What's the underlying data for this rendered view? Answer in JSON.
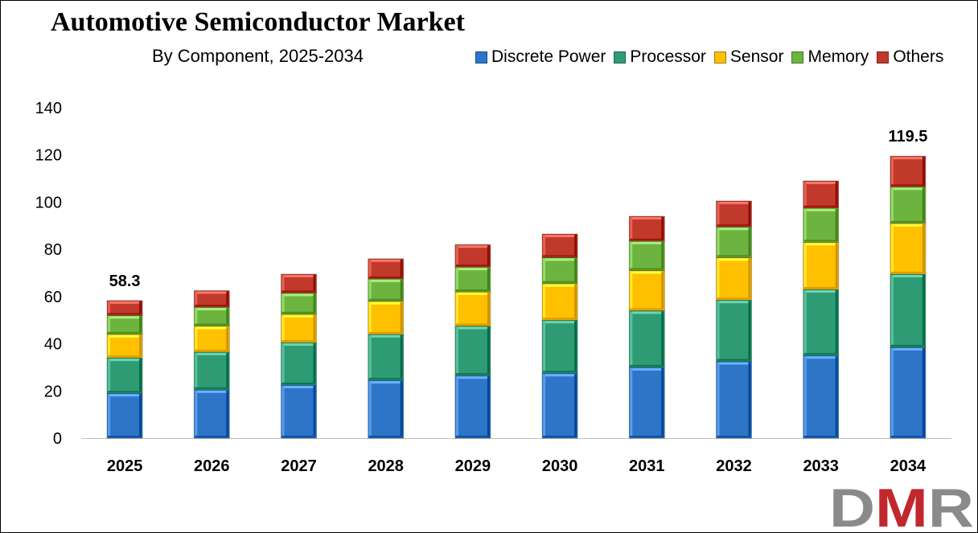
{
  "chart_data": {
    "type": "bar",
    "stacked": true,
    "title": "Automotive Semiconductor Market",
    "subtitle": "By Component, 2025-2034",
    "categories": [
      "2025",
      "2026",
      "2027",
      "2028",
      "2029",
      "2030",
      "2031",
      "2032",
      "2033",
      "2034"
    ],
    "series": [
      {
        "name": "Discrete Power",
        "color": "#2E75C8",
        "values": [
          19,
          20.5,
          22.5,
          24.5,
          26.5,
          27.5,
          30,
          32.5,
          35,
          38.5
        ]
      },
      {
        "name": "Processor",
        "color": "#2E9B74",
        "values": [
          15,
          16,
          18,
          19.5,
          21,
          22.5,
          24,
          26,
          28,
          31
        ]
      },
      {
        "name": "Sensor",
        "color": "#FFC000",
        "values": [
          10,
          11,
          12,
          14,
          14.5,
          15.5,
          17,
          18,
          20,
          21.5
        ]
      },
      {
        "name": "Memory",
        "color": "#6DB33F",
        "values": [
          8,
          8,
          9,
          9.5,
          10.5,
          11,
          12.5,
          13,
          14.5,
          15.5
        ]
      },
      {
        "name": "Others",
        "color": "#C0392B",
        "values": [
          6.3,
          7,
          8,
          8.5,
          9.5,
          10,
          10.5,
          11,
          11.5,
          13
        ]
      }
    ],
    "totals_labeled": [
      {
        "category": "2025",
        "label": "58.3",
        "value": 58.3
      },
      {
        "category": "2034",
        "label": "119.5",
        "value": 119.5
      }
    ],
    "ylim": [
      0,
      140
    ],
    "yticks": [
      0,
      20,
      40,
      60,
      80,
      100,
      120,
      140
    ],
    "grid": false,
    "legend_position": "top-right"
  },
  "logo": {
    "text": "DMR",
    "colors": [
      "#8A8A8A",
      "#C0282D"
    ]
  }
}
